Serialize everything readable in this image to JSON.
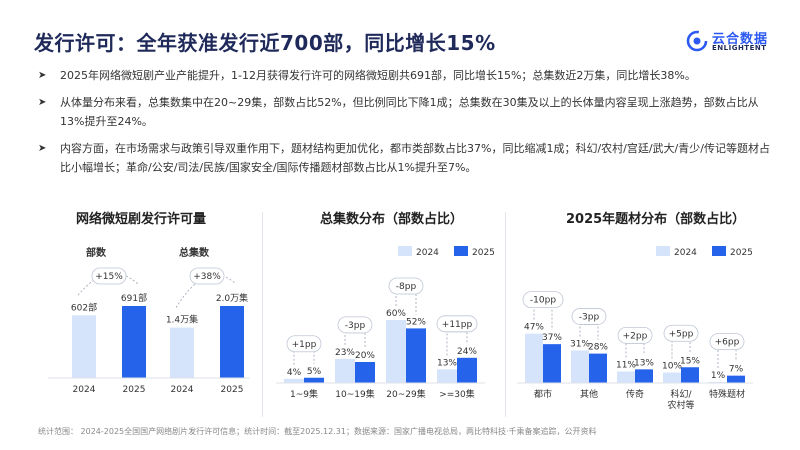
{
  "header": {
    "title": "发行许可：全年获准发行近700部，同比增长15%",
    "logo_cn": "云合数据",
    "logo_en": "ENLIGHTENT"
  },
  "bullets": [
    "2025年网络微短剧产业产能提升，1-12月获得发行许可的网络微短剧共691部，同比增长15%；总集数近2万集，同比增长38%。",
    "从体量分布来看，总集数集中在20~29集，部数占比52%，但比例同比下降1成；总集数在30集及以上的长体量内容呈现上涨趋势，部数占比从13%提升至24%。",
    "内容方面，在市场需求与政策引导双重作用下，题材结构更加优化，都市类部数占比37%，同比缩减1成；科幻/农村/宫廷/武大/青少/传记等题材占比小幅增长；革命/公安/司法/民族/国家安全/国际传播题材部数占比从1%提升至7%。"
  ],
  "footnote": "统计范围： 2024-2025全国国产网络剧片发行许可信息；统计时间：截至2025.12.31；数据来源：国家广播电视总局，两比特科技·千乘备案追踪，公开资料",
  "colors": {
    "y2024": "#d6e4fb",
    "y2025": "#2563eb",
    "title": "#1f2a5a"
  },
  "chart_data": [
    {
      "type": "bar",
      "title": "网络微短剧发行许可量",
      "groups": [
        {
          "label": "部数",
          "categories": [
            "2024",
            "2025"
          ],
          "values": [
            602,
            691
          ],
          "value_labels": [
            "602部",
            "691部"
          ],
          "growth": "+15%"
        },
        {
          "label": "总集数",
          "categories": [
            "2024",
            "2025"
          ],
          "values": [
            1.4,
            2.0
          ],
          "value_labels": [
            "1.4万集",
            "2.0万集"
          ],
          "growth": "+38%"
        }
      ]
    },
    {
      "type": "bar",
      "title": "总集数分布（部数占比）",
      "legend": [
        "2024",
        "2025"
      ],
      "categories": [
        "1~9集",
        "10~19集",
        "20~29集",
        ">=30集"
      ],
      "series": [
        {
          "name": "2024",
          "values": [
            4,
            23,
            60,
            13
          ]
        },
        {
          "name": "2025",
          "values": [
            5,
            20,
            52,
            24
          ]
        }
      ],
      "changes": [
        "+1pp",
        "-3pp",
        "-8pp",
        "+11pp"
      ]
    },
    {
      "type": "bar",
      "title": "2025年题材分布（部数占比）",
      "legend": [
        "2024",
        "2025"
      ],
      "categories": [
        "都市",
        "其他",
        "传奇",
        "科幻/\n农村等",
        "特殊题材"
      ],
      "series": [
        {
          "name": "2024",
          "values": [
            47,
            31,
            11,
            10,
            1
          ]
        },
        {
          "name": "2025",
          "values": [
            37,
            28,
            13,
            15,
            7
          ]
        }
      ],
      "changes": [
        "-10pp",
        "-3pp",
        "+2pp",
        "+5pp",
        "+6pp"
      ]
    }
  ]
}
